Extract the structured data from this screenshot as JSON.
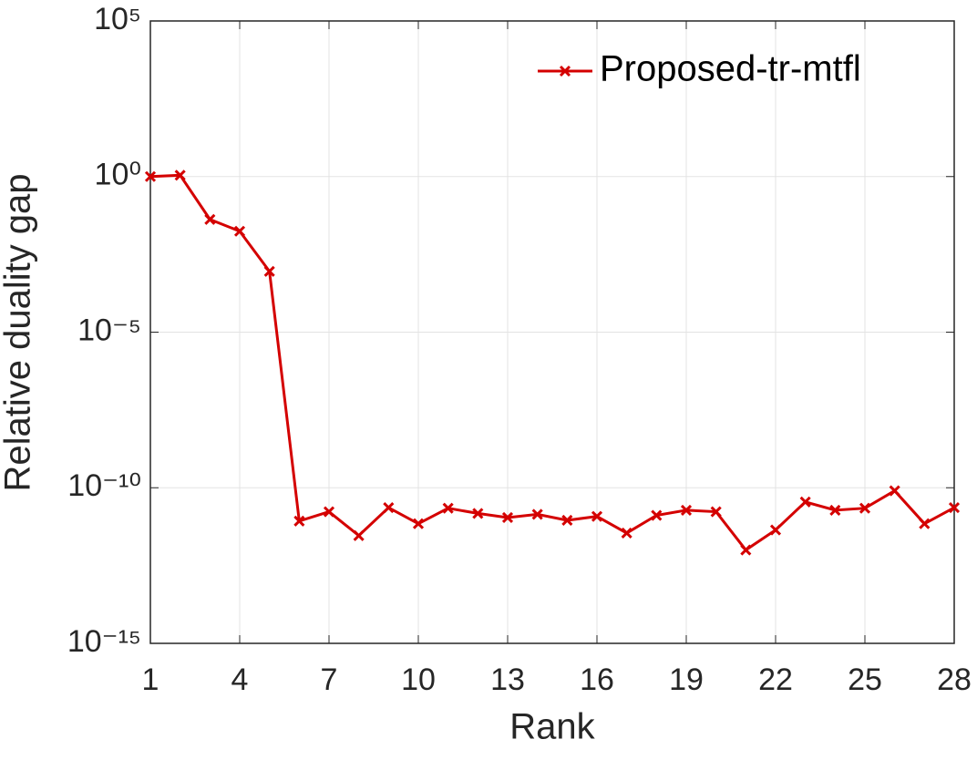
{
  "chart_data": {
    "type": "line",
    "xlabel": "Rank",
    "ylabel": "Relative duality gap",
    "x": [
      1,
      2,
      3,
      4,
      5,
      6,
      7,
      8,
      9,
      10,
      11,
      12,
      13,
      14,
      15,
      16,
      17,
      18,
      19,
      20,
      21,
      22,
      23,
      24,
      25,
      26,
      27,
      28
    ],
    "series": [
      {
        "name": "Proposed-tr-mtfl",
        "color": "#d40000",
        "marker": "x",
        "values": [
          1,
          1.1,
          0.042,
          0.0175,
          0.0009,
          8.5e-12,
          1.7e-11,
          2.9e-12,
          2.3e-11,
          7e-12,
          2.2e-11,
          1.5e-11,
          1.1e-11,
          1.4e-11,
          9e-12,
          1.2e-11,
          3.5e-12,
          1.3e-11,
          1.9e-11,
          1.7e-11,
          1e-12,
          4.4e-12,
          3.5e-11,
          1.9e-11,
          2.2e-11,
          8e-11,
          7e-12,
          2.3e-11
        ]
      }
    ],
    "xlim": [
      1,
      28
    ],
    "xticks": [
      1,
      4,
      7,
      10,
      13,
      16,
      19,
      22,
      25,
      28
    ],
    "ylim": [
      1e-15,
      100000
    ],
    "yticks": [
      {
        "value": 1e-15,
        "label": "10⁻¹⁵"
      },
      {
        "value": 1e-10,
        "label": "10⁻¹⁰"
      },
      {
        "value": 1e-05,
        "label": "10⁻⁵"
      },
      {
        "value": 1,
        "label": "10⁰"
      },
      {
        "value": 100000,
        "label": "10⁵"
      }
    ],
    "y_scale": "log",
    "grid": true,
    "legend": "northeast"
  }
}
